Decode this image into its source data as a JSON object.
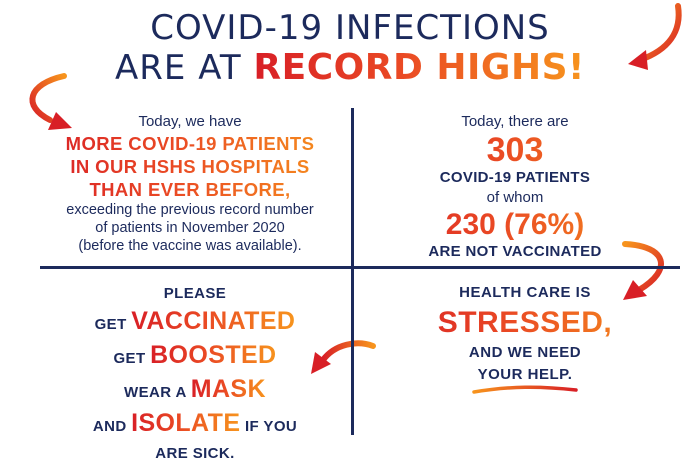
{
  "header": {
    "line1": "COVID-19 INFECTIONS",
    "line2_prefix": "ARE AT ",
    "line2_emphasis": "RECORD HIGHS!"
  },
  "q1": {
    "intro": "Today, we have",
    "emphasis_lines": [
      "MORE COVID-19 PATIENTS",
      "IN OUR HSHS HOSPITALS",
      "THAN EVER BEFORE,"
    ],
    "body_lines": [
      "exceeding the previous record number",
      "of patients in November 2020",
      "(before the vaccine was available)."
    ]
  },
  "q2": {
    "intro": "Today, there are",
    "patients_count": "303",
    "patients_label": "COVID-19 PATIENTS",
    "of_whom": "of whom",
    "unvaccinated": "230 (76%)",
    "unvaccinated_label": "ARE NOT VACCINATED"
  },
  "q3": {
    "please": "PLEASE",
    "get1_small": "GET ",
    "get1_big": "VACCINATED",
    "get2_small": "GET ",
    "get2_big": "BOOSTED",
    "mask_small": "WEAR A ",
    "mask_big": "MASK",
    "isolate_small1": "AND ",
    "isolate_big": "ISOLATE",
    "isolate_small2": " IF YOU",
    "sick": "ARE SICK."
  },
  "q4": {
    "line1": "HEALTH CARE IS",
    "stressed": "STRESSED,",
    "line3": "AND WE NEED",
    "line4": "YOUR HELP."
  },
  "icons": [
    "curved-arrow-top-right-icon",
    "curved-arrow-top-left-icon",
    "curved-arrow-right-icon",
    "curved-arrow-left-icon"
  ],
  "colors": {
    "navy": "#1c2a5c",
    "red": "#d81f26",
    "orange": "#f7941d"
  }
}
